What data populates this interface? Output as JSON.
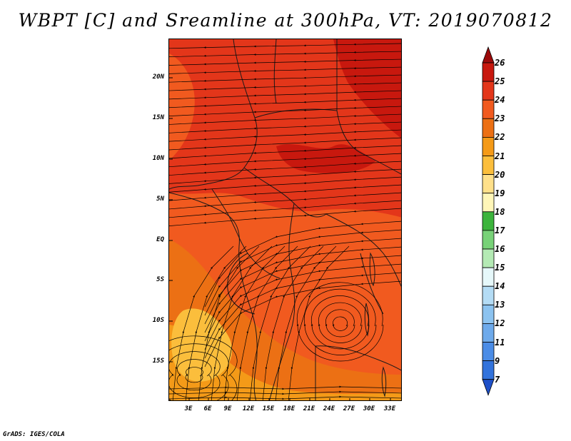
{
  "title": "WBPT [C] and Sreamline at 300hPa, VT: 2019070812",
  "footer": "GrADS: IGES/COLA",
  "map": {
    "lat_ticks": [
      "20N",
      "15N",
      "10N",
      "5N",
      "EQ",
      "5S",
      "10S",
      "15S"
    ],
    "lon_ticks": [
      "3E",
      "6E",
      "9E",
      "12E",
      "15E",
      "18E",
      "21E",
      "24E",
      "27E",
      "30E",
      "33E"
    ],
    "fill_colors": {
      "dark_red": "#c8180e",
      "red": "#e3361a",
      "red_orange": "#f15a1f",
      "orange": "#ec7014",
      "light_orange": "#f49a18",
      "yellow_orange": "#fbbe3c"
    },
    "streamline_color": "#000000"
  },
  "colorbar": {
    "labels": [
      "26",
      "25",
      "24",
      "23",
      "22",
      "21",
      "20",
      "19",
      "18",
      "17",
      "16",
      "15",
      "14",
      "13",
      "12",
      "11",
      "9",
      "7"
    ],
    "colors": [
      "#9c0a0a",
      "#c8180e",
      "#e3361a",
      "#f15a1f",
      "#ec7014",
      "#f49a18",
      "#fbbe3c",
      "#ffe08a",
      "#fff6b8",
      "#3cb43c",
      "#78d278",
      "#b4eab4",
      "#e6f8fa",
      "#b4dcf5",
      "#8cc3f0",
      "#6eaaeb",
      "#4b8ce6",
      "#3273dc",
      "#1e50c8"
    ]
  }
}
